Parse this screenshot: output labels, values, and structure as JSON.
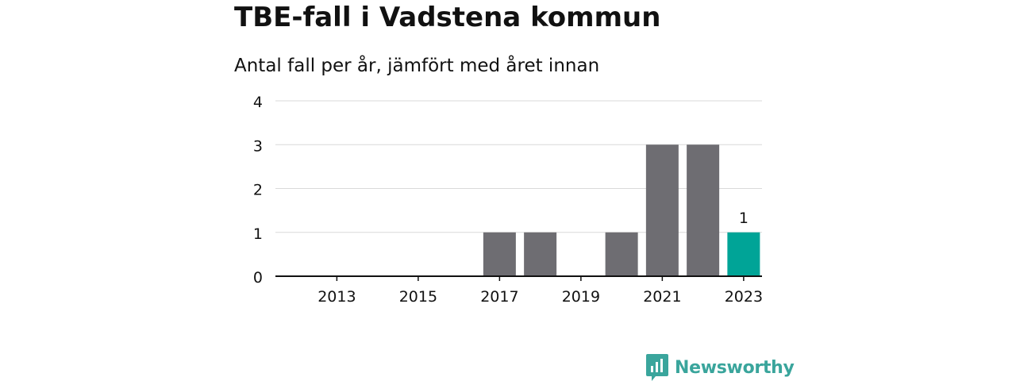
{
  "chart_data": {
    "type": "bar",
    "title": "TBE-fall i Vadstena kommun",
    "subtitle": "Antal fall per år, jämfört med året innan",
    "x": [
      2012,
      2013,
      2014,
      2015,
      2016,
      2017,
      2018,
      2019,
      2020,
      2021,
      2022,
      2023
    ],
    "values": [
      0,
      0,
      0,
      0,
      0,
      1,
      1,
      0,
      1,
      3,
      3,
      1
    ],
    "x_tick_labels": [
      "2013",
      "2015",
      "2017",
      "2019",
      "2021",
      "2023"
    ],
    "y_ticks": [
      "0",
      "1",
      "2",
      "3",
      "4"
    ],
    "ylim": [
      0,
      4
    ],
    "highlight": {
      "year": 2023,
      "label": "1"
    },
    "grid": true,
    "colors": {
      "bar": "#6e6d72",
      "highlight": "#00a497",
      "grid": "#d9d9d9",
      "axis": "#111111"
    }
  },
  "brand": {
    "name": "Newsworthy",
    "color": "#3aa59c",
    "icon": "newsworthy-logo-icon"
  }
}
